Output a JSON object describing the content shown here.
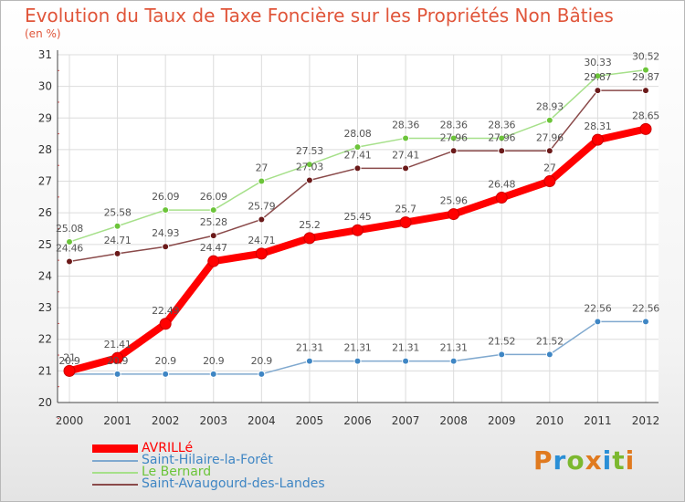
{
  "header": {
    "title": "Evolution du Taux de Taxe Foncière sur les Propriétés Non Bâties",
    "unit": "(en %)"
  },
  "logo": {
    "text": "Proxiti",
    "colors": [
      "#e07a1f",
      "#2a8fd6",
      "#7cb82f",
      "#e07a1f",
      "#2a8fd6",
      "#7cb82f",
      "#e07a1f"
    ]
  },
  "chart_data": {
    "type": "line",
    "x": [
      "2000",
      "2001",
      "2002",
      "2003",
      "2004",
      "2005",
      "2006",
      "2007",
      "2008",
      "2009",
      "2010",
      "2011",
      "2012"
    ],
    "ylim": [
      20,
      31
    ],
    "yticks": [
      "20",
      "21",
      "22",
      "23",
      "24",
      "25",
      "26",
      "27",
      "28",
      "29",
      "30",
      "31"
    ],
    "grid": true,
    "legend_position": "bottom-left",
    "series": [
      {
        "name": "AVRILLé",
        "color": "#ff0000",
        "marker_color": "#ff0000",
        "values": [
          21,
          21.41,
          22.49,
          24.47,
          24.71,
          25.2,
          25.45,
          25.7,
          25.96,
          26.48,
          27,
          28.31,
          28.65
        ],
        "labels": [
          "21",
          "21.41",
          "22.49",
          "24.47",
          "24.71",
          "25.2",
          "25.45",
          "25.7",
          "25.96",
          "26.48",
          "27",
          "28.31",
          "28.65"
        ]
      },
      {
        "name": "Saint-Hilaire-la-Forêt",
        "color": "#80a9cf",
        "marker_color": "#3f86c4",
        "values": [
          20.9,
          20.9,
          20.9,
          20.9,
          20.9,
          21.31,
          21.31,
          21.31,
          21.31,
          21.52,
          21.52,
          22.56,
          22.56
        ],
        "labels": [
          "20.9",
          "20.9",
          "20.9",
          "20.9",
          "20.9",
          "21.31",
          "21.31",
          "21.31",
          "21.31",
          "21.52",
          "21.52",
          "22.56",
          "22.56"
        ]
      },
      {
        "name": "Le Bernard",
        "color": "#a6e08a",
        "marker_color": "#6cc43a",
        "values": [
          25.08,
          25.58,
          26.09,
          26.09,
          27,
          27.53,
          28.08,
          28.36,
          28.36,
          28.36,
          28.93,
          30.33,
          30.52
        ],
        "labels": [
          "25.08",
          "25.58",
          "26.09",
          "26.09",
          "27",
          "27.53",
          "28.08",
          "28.36",
          "28.36",
          "28.36",
          "28.93",
          "30.33",
          "30.52"
        ]
      },
      {
        "name": "Saint-Avaugourd-des-Landes",
        "color": "#8a4a4a",
        "marker_color": "#6b1a1a",
        "values": [
          24.46,
          24.71,
          24.93,
          25.28,
          25.79,
          27.03,
          27.41,
          27.41,
          27.96,
          27.96,
          27.96,
          29.87,
          29.87
        ],
        "labels": [
          "24.46",
          "24.71",
          "24.93",
          "25.28",
          "25.79",
          "27.03",
          "27.41",
          "27.41",
          "27.96",
          "27.96",
          "27.96",
          "29.87",
          "29.87"
        ]
      }
    ]
  }
}
